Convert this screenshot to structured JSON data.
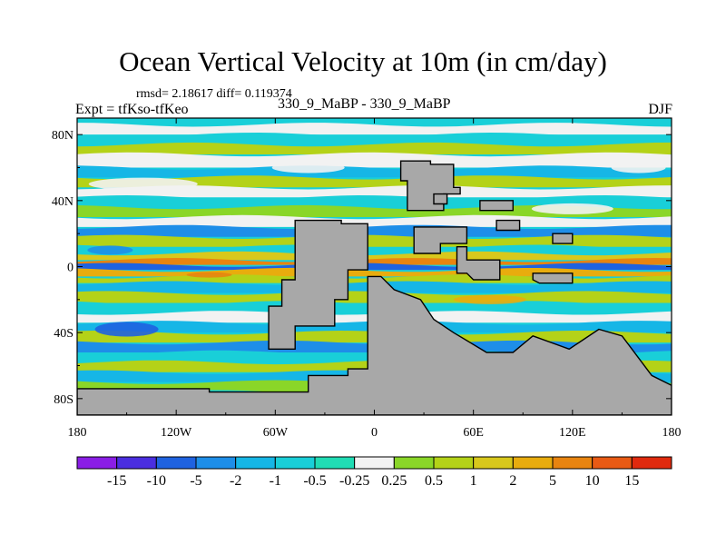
{
  "header": {
    "title": "Ocean Vertical Velocity at 10m (in cm/day)",
    "stats": "rmsd= 2.18617 diff= 0.119374",
    "experiment": "Expt = tfKso-tfKeo",
    "case": "330_9_MaBP - 330_9_MaBP",
    "season": "DJF"
  },
  "axes": {
    "y_ticks": [
      {
        "label": "80N",
        "lat": 80
      },
      {
        "label": "40N",
        "lat": 40
      },
      {
        "label": "0",
        "lat": 0
      },
      {
        "label": "40S",
        "lat": -40
      },
      {
        "label": "80S",
        "lat": -80
      }
    ],
    "x_ticks": [
      {
        "label": "180",
        "lon": -180
      },
      {
        "label": "120W",
        "lon": -120
      },
      {
        "label": "60W",
        "lon": -60
      },
      {
        "label": "0",
        "lon": 0
      },
      {
        "label": "60E",
        "lon": 60
      },
      {
        "label": "120E",
        "lon": 120
      },
      {
        "label": "180",
        "lon": 180
      }
    ],
    "lon_range": [
      -180,
      180
    ],
    "lat_range": [
      -90,
      90
    ]
  },
  "colorbar": {
    "labels": [
      "-15",
      "-10",
      "-5",
      "-2",
      "-1",
      "-0.5",
      "-0.25",
      "0.25",
      "0.5",
      "1",
      "2",
      "5",
      "10",
      "15"
    ],
    "colors": [
      "#8a1ee6",
      "#4a2ee0",
      "#1f62e0",
      "#1e8ee8",
      "#16b6e6",
      "#19cfd8",
      "#20dcb4",
      "#f2f2f2",
      "#8ad628",
      "#b4d218",
      "#d8c81c",
      "#e8ac0e",
      "#e88410",
      "#e85a14",
      "#e02a0e"
    ]
  },
  "colors": {
    "land": "#a8a8a8"
  }
}
